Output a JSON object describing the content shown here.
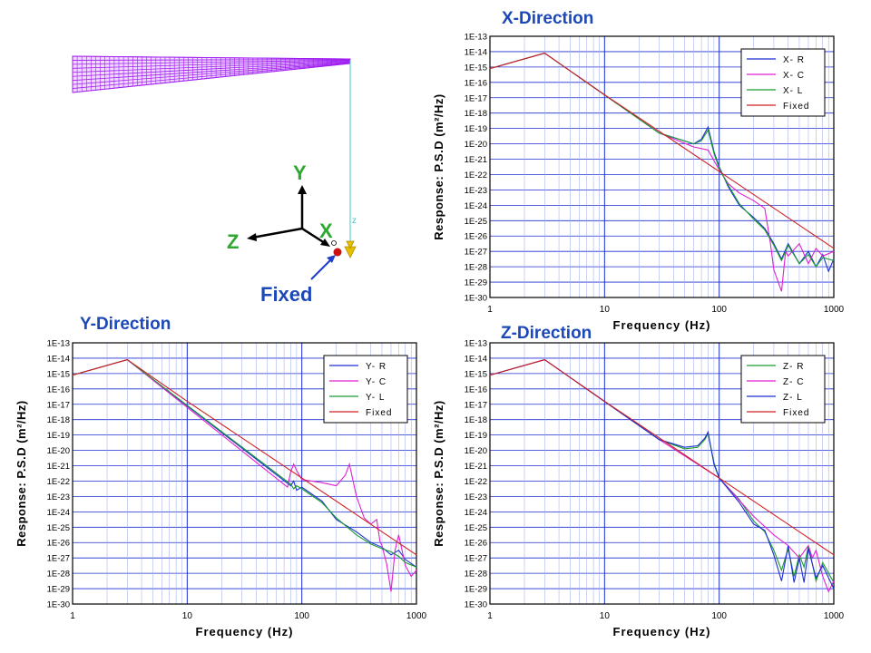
{
  "model": {
    "axis_y": "Y",
    "axis_x": "X",
    "axis_z": "Z",
    "node_label": "z",
    "fixed_label": "Fixed",
    "colors": {
      "mesh": "#a020f0",
      "axis": "#2fa82f",
      "support": "#e8c000",
      "fixed_dot": "#cc1111",
      "pointer": "#1f3ccc",
      "column": "#40c8c8"
    }
  },
  "chart_data": [
    {
      "type": "line",
      "title": "X-Direction",
      "xlabel": "Frequency (Hz)",
      "ylabel": "Response: P.S.D (m²/Hz)",
      "xscale": "log",
      "yscale": "log",
      "xlim": [
        1,
        1000
      ],
      "ylim_exp": [
        -30,
        -13
      ],
      "x_ticks": [
        "1",
        "10",
        "100",
        "1000"
      ],
      "y_ticks": [
        "1E-13",
        "1E-14",
        "1E-15",
        "1E-16",
        "1E-17",
        "1E-18",
        "1E-19",
        "1E-20",
        "1E-21",
        "1E-22",
        "1E-23",
        "1E-24",
        "1E-25",
        "1E-26",
        "1E-27",
        "1E-28",
        "1E-29",
        "1E-30"
      ],
      "grid": true,
      "legend_position": "top-right",
      "series": [
        {
          "name": "X- R",
          "color": "#1c2fd0",
          "x": [
            1,
            3,
            30,
            60,
            70,
            80,
            90,
            100,
            120,
            150,
            200,
            250,
            300,
            350,
            400,
            500,
            600,
            700,
            800,
            900,
            1000
          ],
          "y_exp": [
            -15.1,
            -14.1,
            -19.3,
            -20,
            -19.7,
            -18.9,
            -20.5,
            -21.5,
            -22.8,
            -24,
            -24.8,
            -25.5,
            -26.5,
            -27.5,
            -26.5,
            -27.8,
            -27,
            -28,
            -27.2,
            -28.3,
            -27.5
          ]
        },
        {
          "name": "X- C",
          "color": "#e020d0",
          "x": [
            1,
            3,
            30,
            60,
            80,
            100,
            120,
            150,
            200,
            250,
            280,
            300,
            350,
            380,
            400,
            500,
            600,
            700,
            800,
            1000
          ],
          "y_exp": [
            -15.1,
            -14.1,
            -19.3,
            -20.2,
            -20.4,
            -21.7,
            -22.6,
            -23.2,
            -23.7,
            -24.2,
            -26.5,
            -28.2,
            -29.6,
            -27,
            -27.3,
            -26.5,
            -27.8,
            -26.8,
            -27.3,
            -27
          ]
        },
        {
          "name": "X- L",
          "color": "#1a9a30",
          "x": [
            1,
            3,
            30,
            60,
            70,
            80,
            90,
            100,
            120,
            150,
            200,
            250,
            300,
            350,
            400,
            500,
            600,
            700,
            800,
            1000
          ],
          "y_exp": [
            -15.1,
            -14.1,
            -19.3,
            -20,
            -19.8,
            -19.1,
            -20.6,
            -21.6,
            -22.7,
            -23.9,
            -24.9,
            -25.6,
            -26.6,
            -27.6,
            -26.6,
            -27.8,
            -27.2,
            -28,
            -27.4,
            -27.6
          ]
        },
        {
          "name": "Fixed",
          "color": "#d02020",
          "x": [
            1,
            3,
            10,
            100,
            1000
          ],
          "y_exp": [
            -15.1,
            -14.1,
            -16.8,
            -21.8,
            -26.8
          ]
        }
      ]
    },
    {
      "type": "line",
      "title": "Y-Direction",
      "xlabel": "Frequency (Hz)",
      "ylabel": "Response: P.S.D (m²/Hz)",
      "xscale": "log",
      "yscale": "log",
      "xlim": [
        1,
        1000
      ],
      "ylim_exp": [
        -30,
        -13
      ],
      "x_ticks": [
        "1",
        "10",
        "100",
        "1000"
      ],
      "y_ticks": [
        "1E-13",
        "1E-14",
        "1E-15",
        "1E-16",
        "1E-17",
        "1E-18",
        "1E-19",
        "1E-20",
        "1E-21",
        "1E-22",
        "1E-23",
        "1E-24",
        "1E-25",
        "1E-26",
        "1E-27",
        "1E-28",
        "1E-29",
        "1E-30"
      ],
      "grid": true,
      "legend_position": "top-right",
      "series": [
        {
          "name": "Y- R",
          "color": "#1c2fd0",
          "x": [
            1,
            3,
            80,
            85,
            90,
            100,
            150,
            200,
            300,
            400,
            500,
            600,
            700,
            800,
            1000
          ],
          "y_exp": [
            -15.1,
            -14.1,
            -22.3,
            -22,
            -22.6,
            -22.4,
            -23.3,
            -24.5,
            -25.3,
            -26,
            -26.3,
            -26.8,
            -26.5,
            -27.1,
            -27.6
          ]
        },
        {
          "name": "Y- C",
          "color": "#e020d0",
          "x": [
            1,
            3,
            75,
            80,
            85,
            90,
            100,
            150,
            200,
            240,
            260,
            280,
            300,
            350,
            400,
            450,
            480,
            500,
            550,
            600,
            650,
            700,
            800,
            900,
            1000
          ],
          "y_exp": [
            -15.1,
            -14.1,
            -22.4,
            -21.4,
            -20.9,
            -21.3,
            -21.9,
            -22.1,
            -22.3,
            -21.6,
            -20.9,
            -22,
            -23,
            -24.4,
            -24.8,
            -24.5,
            -25.9,
            -26.2,
            -27.4,
            -29.2,
            -26.5,
            -25.5,
            -27.5,
            -28.2,
            -27.8
          ]
        },
        {
          "name": "Y- L",
          "color": "#1a9a30",
          "x": [
            1,
            3,
            80,
            85,
            90,
            100,
            150,
            200,
            300,
            400,
            500,
            600,
            700,
            800,
            1000
          ],
          "y_exp": [
            -15.1,
            -14.1,
            -22.2,
            -22.5,
            -22.3,
            -22.5,
            -23.4,
            -24.4,
            -25.5,
            -26.1,
            -26.4,
            -26.6,
            -26.9,
            -27.3,
            -27.6
          ]
        },
        {
          "name": "Fixed",
          "color": "#d02020",
          "x": [
            1,
            3,
            10,
            100,
            1000
          ],
          "y_exp": [
            -15.1,
            -14.1,
            -16.8,
            -21.8,
            -26.8
          ]
        }
      ]
    },
    {
      "type": "line",
      "title": "Z-Direction",
      "xlabel": "Frequency (Hz)",
      "ylabel": "Response: P.S.D (m²/Hz)",
      "xscale": "log",
      "yscale": "log",
      "xlim": [
        1,
        1000
      ],
      "ylim_exp": [
        -30,
        -13
      ],
      "x_ticks": [
        "1",
        "10",
        "100",
        "1000"
      ],
      "y_ticks": [
        "1E-13",
        "1E-14",
        "1E-15",
        "1E-16",
        "1E-17",
        "1E-18",
        "1E-19",
        "1E-20",
        "1E-21",
        "1E-22",
        "1E-23",
        "1E-24",
        "1E-25",
        "1E-26",
        "1E-27",
        "1E-28",
        "1E-29",
        "1E-30"
      ],
      "grid": true,
      "legend_position": "top-right",
      "series": [
        {
          "name": "Z- R",
          "color": "#1a9a30",
          "x": [
            1,
            3,
            30,
            50,
            65,
            75,
            80,
            90,
            100,
            150,
            200,
            250,
            300,
            350,
            400,
            450,
            500,
            550,
            600,
            700,
            800,
            1000
          ],
          "y_exp": [
            -15.1,
            -14.1,
            -19.3,
            -19.9,
            -19.8,
            -19.3,
            -18.9,
            -20.8,
            -21.8,
            -23.2,
            -24.6,
            -25.3,
            -26.5,
            -27.8,
            -26.4,
            -28.2,
            -26.8,
            -27.6,
            -26.2,
            -28.5,
            -27.3,
            -28.6
          ]
        },
        {
          "name": "Z- C",
          "color": "#e020d0",
          "x": [
            1,
            3,
            30,
            100,
            200,
            300,
            400,
            500,
            600,
            650,
            700,
            800,
            900,
            1000
          ],
          "y_exp": [
            -15.1,
            -14.1,
            -19.3,
            -21.8,
            -24.3,
            -25.5,
            -26.2,
            -27,
            -26.2,
            -27,
            -26.5,
            -28.2,
            -29.2,
            -28.5
          ]
        },
        {
          "name": "Z- L",
          "color": "#1c2fd0",
          "x": [
            1,
            3,
            30,
            50,
            65,
            75,
            80,
            90,
            100,
            150,
            200,
            250,
            300,
            350,
            400,
            450,
            500,
            550,
            600,
            700,
            800,
            1000
          ],
          "y_exp": [
            -15.1,
            -14.1,
            -19.3,
            -19.8,
            -19.7,
            -19.2,
            -18.8,
            -20.9,
            -21.8,
            -23.4,
            -24.8,
            -25.2,
            -26.8,
            -28.5,
            -26.2,
            -28.6,
            -27,
            -28.6,
            -26.4,
            -28.3,
            -27.5,
            -29
          ]
        },
        {
          "name": "Fixed",
          "color": "#d02020",
          "x": [
            1,
            3,
            10,
            100,
            1000
          ],
          "y_exp": [
            -15.1,
            -14.1,
            -16.8,
            -21.8,
            -26.8
          ]
        }
      ]
    }
  ]
}
